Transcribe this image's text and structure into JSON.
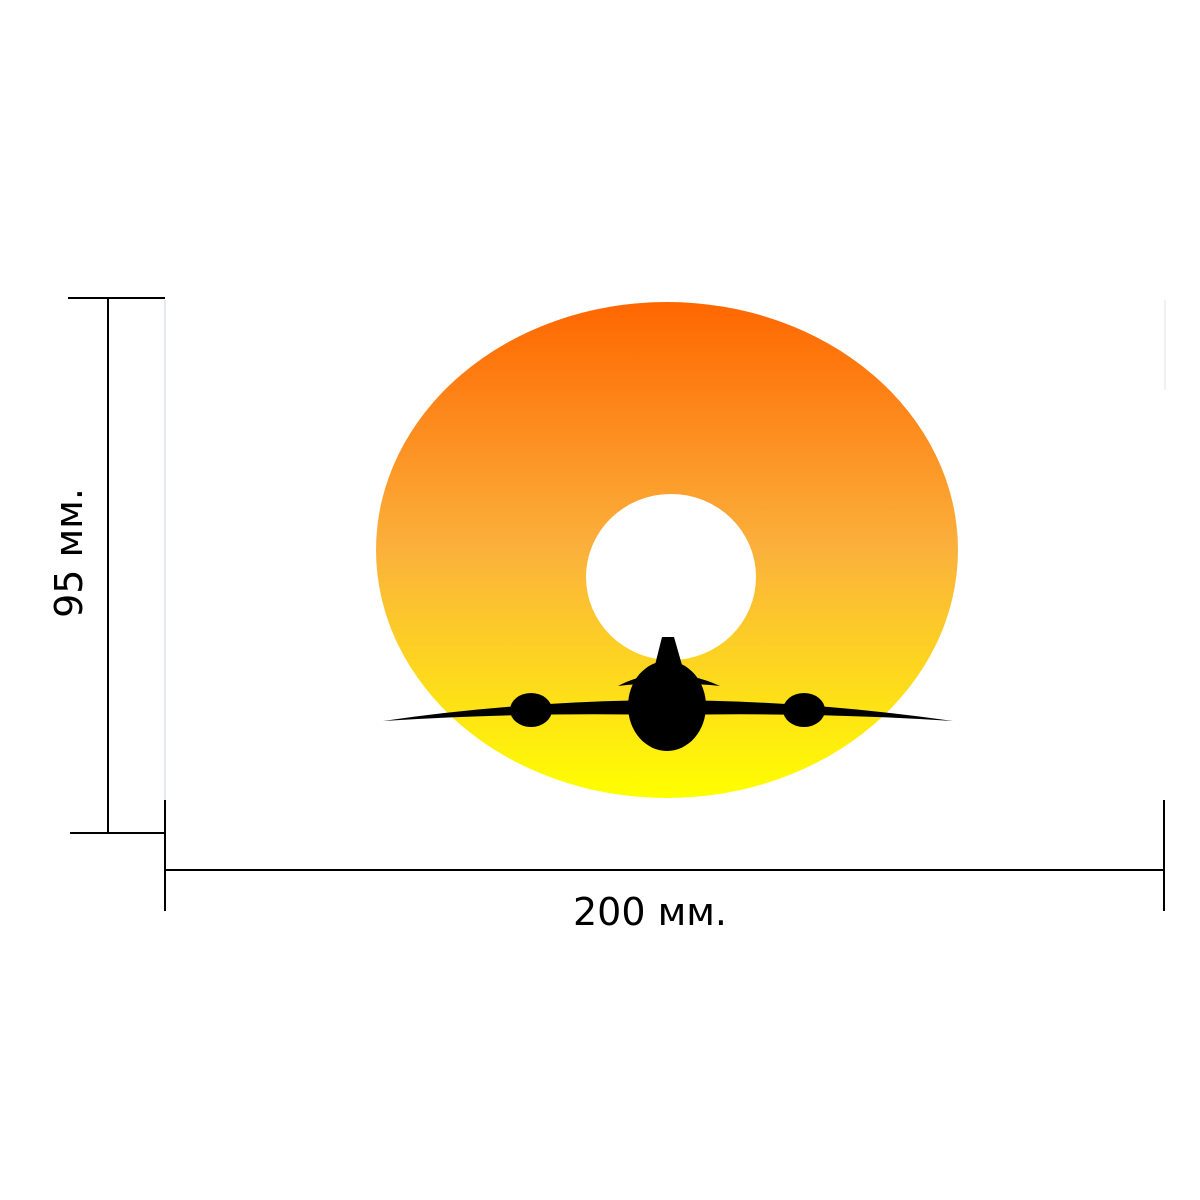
{
  "dimensions": {
    "height_label": "95 мм.",
    "width_label": "200 мм."
  },
  "design": {
    "shape": "disc-with-center-hole",
    "motif": "airplane-silhouette-icon",
    "gradient_top_color": "#ff6600",
    "gradient_mid_color": "#fbb13c",
    "gradient_bottom_color": "#ffff00",
    "silhouette_color": "#000000",
    "line_color": "#000000"
  }
}
